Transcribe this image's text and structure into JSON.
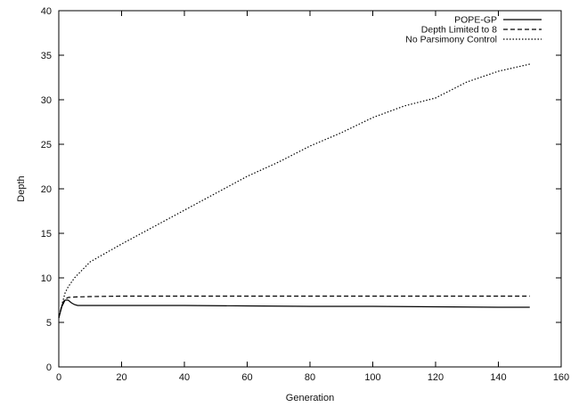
{
  "chart_data": {
    "type": "line",
    "title": "",
    "xlabel": "Generation",
    "ylabel": "Depth",
    "xlim": [
      0,
      160
    ],
    "ylim": [
      0,
      40
    ],
    "x_ticks": [
      0,
      20,
      40,
      60,
      80,
      100,
      120,
      140,
      160
    ],
    "y_ticks": [
      0,
      5,
      10,
      15,
      20,
      25,
      30,
      35,
      40
    ],
    "x_tick_labels": [
      "0",
      "20",
      "40",
      "60",
      "80",
      "100",
      "120",
      "140",
      "160"
    ],
    "y_tick_labels": [
      "0",
      "5",
      "10",
      "15",
      "20",
      "25",
      "30",
      "35",
      "40"
    ],
    "grid": false,
    "legend_position": "top-right",
    "series": [
      {
        "name": "POPE-GP",
        "style": "solid",
        "color": "#000000",
        "x": [
          0,
          1,
          2,
          3,
          4,
          5,
          6,
          8,
          10,
          20,
          40,
          60,
          80,
          100,
          120,
          140,
          150
        ],
        "y": [
          5.5,
          6.8,
          7.5,
          7.5,
          7.2,
          7.0,
          6.9,
          6.9,
          6.9,
          6.9,
          6.9,
          6.85,
          6.8,
          6.8,
          6.75,
          6.7,
          6.7
        ]
      },
      {
        "name": "Depth Limited to 8",
        "style": "dashed",
        "color": "#000000",
        "x": [
          0,
          1,
          2,
          3,
          5,
          10,
          20,
          40,
          60,
          80,
          100,
          120,
          140,
          150
        ],
        "y": [
          5.5,
          7.0,
          7.6,
          7.8,
          7.85,
          7.9,
          7.95,
          7.95,
          7.95,
          7.95,
          7.95,
          7.95,
          7.95,
          7.95
        ]
      },
      {
        "name": "No Parsimony Control",
        "style": "dotted",
        "color": "#000000",
        "x": [
          0,
          1,
          2,
          3,
          5,
          10,
          20,
          30,
          40,
          50,
          60,
          70,
          80,
          90,
          100,
          110,
          120,
          130,
          140,
          150
        ],
        "y": [
          5.5,
          7.0,
          8.3,
          9.0,
          10.0,
          11.8,
          13.8,
          15.7,
          17.6,
          19.5,
          21.4,
          23.0,
          24.8,
          26.3,
          28.0,
          29.3,
          30.2,
          32.0,
          33.2,
          34.0
        ]
      }
    ]
  }
}
